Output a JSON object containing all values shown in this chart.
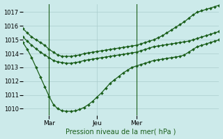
{
  "xlabel": "Pression niveau de la mer( hPa )",
  "bg_color": "#cceaea",
  "grid_color": "#aacccc",
  "line_color": "#1a5e1a",
  "marker": "D",
  "markersize": 2.0,
  "linewidth": 0.9,
  "ylim": [
    1009.5,
    1017.6
  ],
  "yticks": [
    1010,
    1011,
    1012,
    1013,
    1014,
    1015,
    1016,
    1017
  ],
  "ytick_fontsize": 6,
  "xtick_fontsize": 6.5,
  "vlines": [
    6,
    26
  ],
  "xtick_positions": [
    6,
    17,
    26
  ],
  "xtick_labels": [
    "Mar",
    "Jeu",
    "Mer"
  ],
  "n": 46,
  "line1": [
    1015.8,
    1015.5,
    1015.2,
    1015.0,
    1014.8,
    1014.6,
    1014.3,
    1014.1,
    1013.9,
    1013.8,
    1013.8,
    1013.8,
    1013.85,
    1013.9,
    1014.0,
    1014.05,
    1014.1,
    1014.15,
    1014.2,
    1014.25,
    1014.3,
    1014.35,
    1014.4,
    1014.45,
    1014.5,
    1014.55,
    1014.6,
    1014.7,
    1014.8,
    1014.9,
    1015.0,
    1015.15,
    1015.3,
    1015.5,
    1015.7,
    1015.9,
    1016.1,
    1016.3,
    1016.55,
    1016.8,
    1017.0,
    1017.1,
    1017.2,
    1017.3,
    1017.4,
    1017.5
  ],
  "line2": [
    1015.2,
    1014.9,
    1014.6,
    1014.35,
    1014.1,
    1013.9,
    1013.7,
    1013.5,
    1013.4,
    1013.35,
    1013.3,
    1013.3,
    1013.35,
    1013.4,
    1013.5,
    1013.55,
    1013.6,
    1013.65,
    1013.7,
    1013.75,
    1013.8,
    1013.85,
    1013.9,
    1013.95,
    1014.0,
    1014.05,
    1014.1,
    1014.2,
    1014.3,
    1014.4,
    1014.5,
    1014.55,
    1014.6,
    1014.65,
    1014.7,
    1014.75,
    1014.8,
    1014.85,
    1014.9,
    1015.0,
    1015.1,
    1015.2,
    1015.3,
    1015.4,
    1015.5,
    1015.6
  ],
  "line3": [
    1014.8,
    1014.3,
    1013.7,
    1013.0,
    1012.3,
    1011.6,
    1010.9,
    1010.3,
    1010.0,
    1009.85,
    1009.82,
    1009.82,
    1009.85,
    1009.95,
    1010.1,
    1010.3,
    1010.55,
    1010.85,
    1011.15,
    1011.5,
    1011.85,
    1012.1,
    1012.35,
    1012.6,
    1012.8,
    1013.0,
    1013.1,
    1013.2,
    1013.3,
    1013.4,
    1013.5,
    1013.55,
    1013.6,
    1013.65,
    1013.7,
    1013.75,
    1013.8,
    1013.9,
    1014.1,
    1014.3,
    1014.5,
    1014.6,
    1014.7,
    1014.8,
    1014.9,
    1015.0
  ]
}
